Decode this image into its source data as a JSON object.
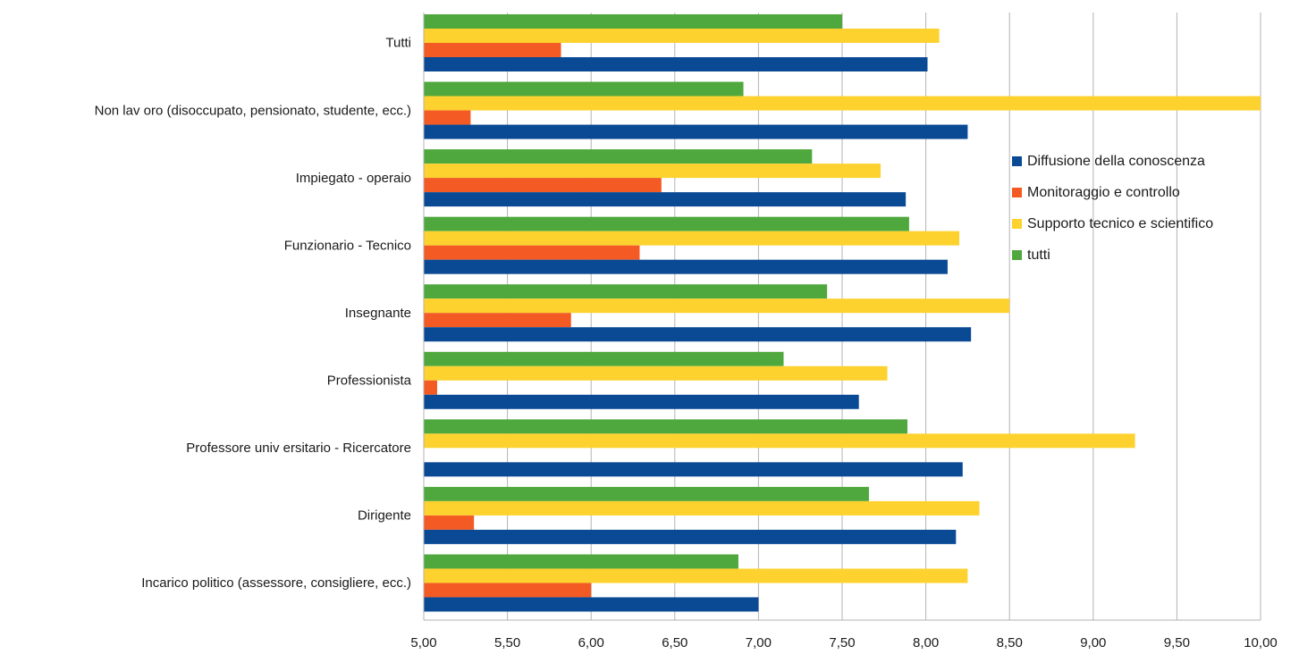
{
  "chart_data": {
    "type": "bar",
    "orientation": "horizontal",
    "title": "",
    "xlabel": "",
    "ylabel": "",
    "xlim": [
      5.0,
      10.0
    ],
    "x_ticks": [
      "5,00",
      "5,50",
      "6,00",
      "6,50",
      "7,00",
      "7,50",
      "8,00",
      "8,50",
      "9,00",
      "9,50",
      "10,00"
    ],
    "grid": "vertical",
    "legend_position": "right",
    "categories": [
      "Tutti",
      "Non lav oro (disoccupato, pensionato, studente, ecc.)",
      "Impiegato - operaio",
      "Funzionario - Tecnico",
      "Insegnante",
      "Professionista",
      "Professore univ ersitario - Ricercatore",
      "Dirigente",
      "Incarico politico (assessore, consigliere, ecc.)"
    ],
    "series": [
      {
        "name": "Diffusione della conoscenza",
        "color": "#0a4a94",
        "values": [
          8.01,
          8.25,
          7.88,
          8.13,
          8.27,
          7.6,
          8.22,
          8.18,
          7.0
        ]
      },
      {
        "name": "Monitoraggio e controllo",
        "color": "#f35a24",
        "values": [
          5.82,
          5.28,
          6.42,
          6.29,
          5.88,
          5.08,
          5.0,
          5.3,
          6.0
        ]
      },
      {
        "name": "Supporto tecnico e scientifico",
        "color": "#fdd22e",
        "values": [
          8.08,
          10.0,
          7.73,
          8.2,
          8.5,
          7.77,
          9.25,
          8.32,
          8.25
        ]
      },
      {
        "name": "tutti",
        "color": "#4fa83d",
        "values": [
          7.5,
          6.91,
          7.32,
          7.9,
          7.41,
          7.15,
          7.89,
          7.66,
          6.88
        ]
      }
    ]
  }
}
